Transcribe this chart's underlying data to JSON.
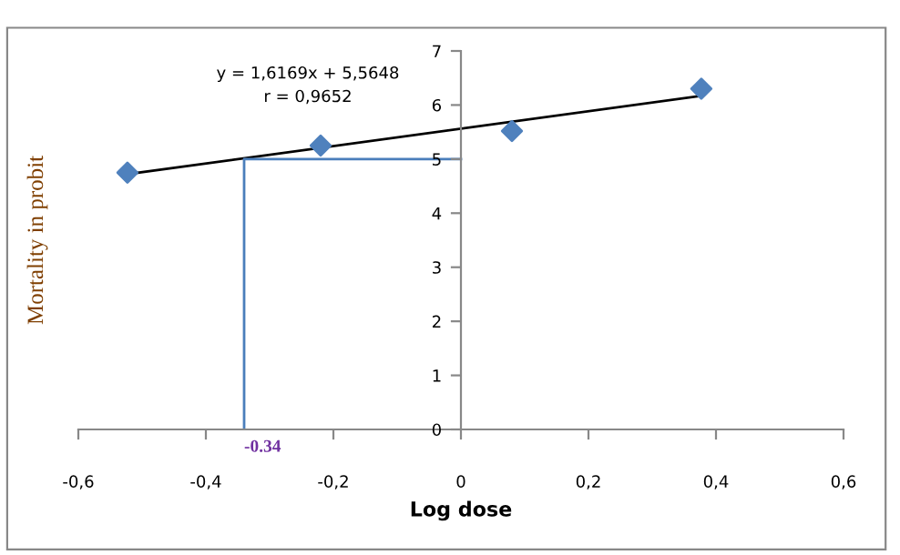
{
  "chart_data": {
    "type": "scatter",
    "xlabel": "Log dose",
    "ylabel": "Mortality in probit",
    "series": [
      {
        "color": "#4f81bd",
        "marker": "diamond",
        "x": [
          -0.523,
          -0.22,
          0.08,
          0.377
        ],
        "values": [
          4.75,
          5.25,
          5.52,
          6.3
        ]
      },
      {
        "type": "line",
        "color": "#000000",
        "marker": "none",
        "x": [
          -0.523,
          0.377
        ],
        "values": [
          4.72,
          6.17
        ]
      },
      {
        "type": "line",
        "color": "#4a7ebb",
        "marker": "none",
        "x": [
          -0.34,
          -0.34,
          0
        ],
        "values": [
          0,
          5,
          5
        ]
      }
    ],
    "annotations": [
      "y = 1,6169x + 5,5648\nr = 0,9652",
      {
        "text": "-0.34",
        "x": -0.34,
        "y": 0
      }
    ],
    "xlim": [
      -0.6,
      0.6
    ],
    "xticks": [
      {
        "value": -0.6,
        "label": "-0,6"
      },
      {
        "value": -0.4,
        "label": "-0,4"
      },
      {
        "value": -0.2,
        "label": "-0,2"
      },
      0,
      {
        "value": 0.2,
        "label": "0,2"
      },
      {
        "value": 0.4,
        "label": "0,4"
      },
      {
        "value": 0.6,
        "label": "0,6"
      }
    ],
    "ylim": [
      0,
      7
    ],
    "yticks": [
      0,
      1,
      2,
      3,
      4,
      5,
      6,
      7
    ],
    "grid": false,
    "legend": false
  }
}
